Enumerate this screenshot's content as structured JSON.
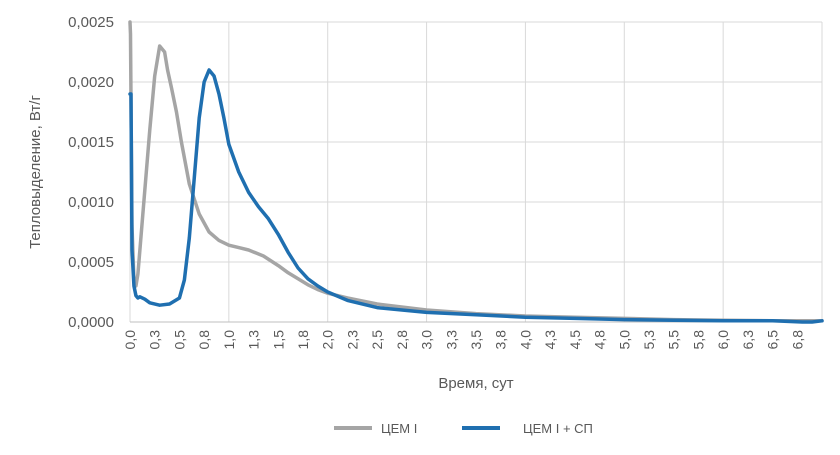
{
  "chart_data": {
    "type": "line",
    "title": "",
    "xlabel": "Время, сут",
    "ylabel": "Тепловыделение, Вт/г",
    "xlim": [
      0,
      7
    ],
    "ylim": [
      0,
      0.0025
    ],
    "grid": true,
    "legend_position": "bottom",
    "x_ticks": [
      {
        "v": 0.0,
        "label": "0,0"
      },
      {
        "v": 0.25,
        "label": "0,3"
      },
      {
        "v": 0.5,
        "label": "0,5"
      },
      {
        "v": 0.75,
        "label": "0,8"
      },
      {
        "v": 1.0,
        "label": "1,0"
      },
      {
        "v": 1.25,
        "label": "1,3"
      },
      {
        "v": 1.5,
        "label": "1,5"
      },
      {
        "v": 1.75,
        "label": "1,8"
      },
      {
        "v": 2.0,
        "label": "2,0"
      },
      {
        "v": 2.25,
        "label": "2,3"
      },
      {
        "v": 2.5,
        "label": "2,5"
      },
      {
        "v": 2.75,
        "label": "2,8"
      },
      {
        "v": 3.0,
        "label": "3,0"
      },
      {
        "v": 3.25,
        "label": "3,3"
      },
      {
        "v": 3.5,
        "label": "3,5"
      },
      {
        "v": 3.75,
        "label": "3,8"
      },
      {
        "v": 4.0,
        "label": "4,0"
      },
      {
        "v": 4.25,
        "label": "4,3"
      },
      {
        "v": 4.5,
        "label": "4,5"
      },
      {
        "v": 4.75,
        "label": "4,8"
      },
      {
        "v": 5.0,
        "label": "5,0"
      },
      {
        "v": 5.25,
        "label": "5,3"
      },
      {
        "v": 5.5,
        "label": "5,5"
      },
      {
        "v": 5.75,
        "label": "5,8"
      },
      {
        "v": 6.0,
        "label": "6,0"
      },
      {
        "v": 6.25,
        "label": "6,3"
      },
      {
        "v": 6.5,
        "label": "6,5"
      },
      {
        "v": 6.75,
        "label": "6,8"
      }
    ],
    "y_ticks": [
      {
        "v": 0.0,
        "label": "0,0000"
      },
      {
        "v": 0.0005,
        "label": "0,0005"
      },
      {
        "v": 0.001,
        "label": "0,0010"
      },
      {
        "v": 0.0015,
        "label": "0,0015"
      },
      {
        "v": 0.002,
        "label": "0,0020"
      },
      {
        "v": 0.0025,
        "label": "0,0025"
      }
    ],
    "series": [
      {
        "name": "ЦЕМ I",
        "color": "#a5a5a5",
        "x": [
          0.0,
          0.005,
          0.02,
          0.04,
          0.06,
          0.08,
          0.1,
          0.13,
          0.16,
          0.2,
          0.25,
          0.3,
          0.35,
          0.38,
          0.42,
          0.47,
          0.52,
          0.6,
          0.7,
          0.8,
          0.9,
          1.0,
          1.1,
          1.2,
          1.35,
          1.5,
          1.6,
          1.7,
          1.8,
          1.9,
          2.0,
          2.2,
          2.5,
          3.0,
          3.5,
          4.0,
          4.5,
          5.0,
          5.5,
          6.0,
          6.5,
          7.0
        ],
        "y": [
          0.0025,
          0.0024,
          0.0008,
          0.00035,
          0.0003,
          0.0004,
          0.0006,
          0.0009,
          0.0012,
          0.0016,
          0.00205,
          0.0023,
          0.00225,
          0.0021,
          0.00195,
          0.00175,
          0.0015,
          0.00115,
          0.0009,
          0.00075,
          0.00068,
          0.00064,
          0.00062,
          0.0006,
          0.00055,
          0.00047,
          0.00041,
          0.00036,
          0.00031,
          0.00027,
          0.00024,
          0.0002,
          0.00015,
          0.0001,
          7e-05,
          5e-05,
          4e-05,
          3e-05,
          2e-05,
          1.5e-05,
          1e-05,
          1e-05
        ]
      },
      {
        "name": "ЦЕМ I + СП",
        "color": "#1f6fb0",
        "x": [
          0.0,
          0.01,
          0.02,
          0.04,
          0.06,
          0.08,
          0.1,
          0.15,
          0.2,
          0.3,
          0.4,
          0.5,
          0.55,
          0.6,
          0.65,
          0.7,
          0.75,
          0.8,
          0.85,
          0.9,
          0.95,
          1.0,
          1.1,
          1.2,
          1.3,
          1.4,
          1.5,
          1.6,
          1.7,
          1.8,
          1.9,
          2.0,
          2.2,
          2.5,
          3.0,
          3.5,
          4.0,
          4.5,
          5.0,
          5.5,
          6.0,
          6.5,
          6.8,
          6.9,
          7.0
        ],
        "y": [
          0.0019,
          0.0019,
          0.0006,
          0.0003,
          0.00022,
          0.0002,
          0.00021,
          0.00019,
          0.00016,
          0.00014,
          0.00015,
          0.0002,
          0.00035,
          0.0007,
          0.0012,
          0.0017,
          0.002,
          0.0021,
          0.00205,
          0.0019,
          0.0017,
          0.00148,
          0.00125,
          0.00108,
          0.00096,
          0.00086,
          0.00073,
          0.00058,
          0.00045,
          0.00036,
          0.0003,
          0.00025,
          0.00018,
          0.00012,
          8e-05,
          6e-05,
          4e-05,
          3e-05,
          2e-05,
          1.5e-05,
          1e-05,
          1e-05,
          0.0,
          0.0,
          1e-05
        ]
      }
    ]
  }
}
